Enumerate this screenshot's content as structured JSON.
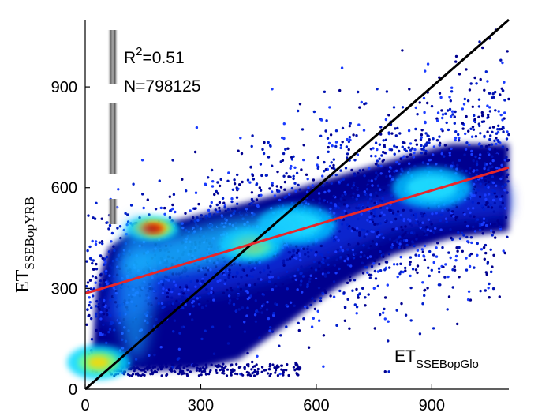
{
  "chart_data": {
    "type": "scatter",
    "style": "density-heatmap",
    "xlim": [
      0,
      1100
    ],
    "ylim": [
      0,
      1100
    ],
    "x_ticks": [
      0,
      300,
      600,
      900
    ],
    "y_ticks": [
      0,
      300,
      600,
      900
    ],
    "ylabel": {
      "main": "ET",
      "sub": "SSEBopYRB"
    },
    "xlabel": {
      "main": "ET",
      "sub": "SSEBopGlo"
    },
    "annotations": {
      "r2_prefix": "R",
      "r2_exp": "2",
      "r2_value": "=0.51",
      "n_text": "N=798125"
    },
    "lines": [
      {
        "name": "one-to-one",
        "color": "#000000",
        "x": [
          0,
          1100
        ],
        "y": [
          0,
          1100
        ]
      },
      {
        "name": "regression",
        "color": "#e8262a",
        "x": [
          0,
          1100
        ],
        "y": [
          285,
          660
        ]
      }
    ],
    "density_hotspots": [
      {
        "x": 175,
        "y": 478,
        "level": "max"
      },
      {
        "x": 35,
        "y": 80,
        "level": "high"
      },
      {
        "x": 430,
        "y": 430,
        "level": "high"
      },
      {
        "x": 550,
        "y": 490,
        "level": "medium"
      },
      {
        "x": 900,
        "y": 600,
        "level": "medium"
      }
    ],
    "grid": false,
    "colors": [
      "#00008f",
      "#0050ff",
      "#00d7ff",
      "#7fff7f",
      "#ffd700",
      "#ff4000",
      "#800000"
    ]
  }
}
